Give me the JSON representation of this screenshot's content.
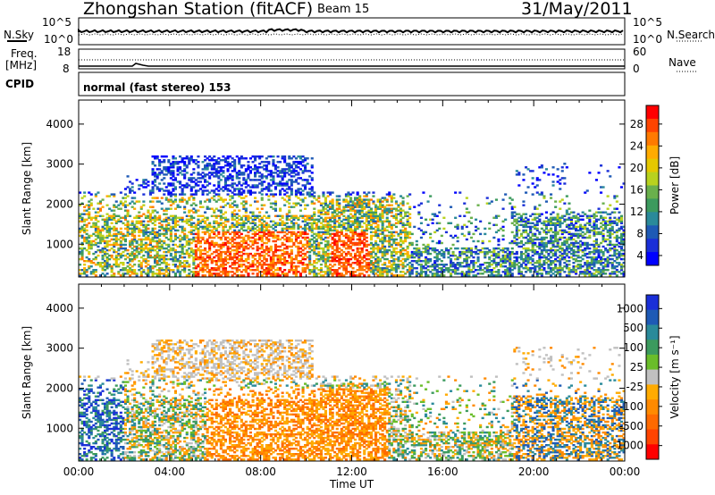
{
  "header": {
    "title": "Zhongshan Station (fitACF)",
    "beam": "Beam 15",
    "date": "31/May/2011"
  },
  "top_panels": {
    "nsky_label": "N.Sky",
    "nsky_ticks": [
      "10^5",
      "10^0"
    ],
    "nsearch_label": "N.Search",
    "nsearch_ticks": [
      "10^5",
      "10^0"
    ],
    "freq_label_1": "Freq.",
    "freq_label_2": "[MHz]",
    "freq_ticks": [
      "18",
      "8"
    ],
    "nave_label": "Nave",
    "nave_ticks": [
      "60",
      "0"
    ],
    "cpid_label": "CPID",
    "cpid_text": "normal (fast stereo) 153"
  },
  "chart_data": [
    {
      "type": "heatmap",
      "name": "power",
      "ylabel": "Slant Range [km]",
      "xlabel": "",
      "yticks": [
        1000,
        2000,
        3000,
        4000
      ],
      "ylim": [
        180,
        4600
      ],
      "xlim": [
        0,
        24
      ],
      "colorbar_label": "Power [dB]",
      "colorbar_ticks": [
        "28",
        "24",
        "20",
        "16",
        "12",
        "8",
        "4"
      ],
      "colorbar_colors": [
        "#ff0000",
        "#ff4400",
        "#ff7a00",
        "#ffab00",
        "#e5c800",
        "#b8d21e",
        "#6ab04c",
        "#3c9a5e",
        "#2a8a9a",
        "#1e5ab5",
        "#1a2fd8",
        "#0000ff"
      ]
    },
    {
      "type": "heatmap",
      "name": "velocity",
      "ylabel": "Slant Range [km]",
      "xlabel": "Time UT",
      "yticks": [
        1000,
        2000,
        3000,
        4000
      ],
      "ylim": [
        180,
        4600
      ],
      "xlim": [
        0,
        24
      ],
      "xticks": [
        "00:00",
        "04:00",
        "08:00",
        "12:00",
        "16:00",
        "20:00",
        "00:00"
      ],
      "colorbar_label": "Velocity [m s⁻¹]",
      "colorbar_ticks": [
        "1000",
        "500",
        "100",
        "25",
        "-25",
        "-100",
        "-500",
        "-1000"
      ],
      "colorbar_colors": [
        "#1a2fd8",
        "#1e5ab5",
        "#2a8a9a",
        "#3c9a5e",
        "#6abd2a",
        "#c0c0c0",
        "#ffab00",
        "#ff8a00",
        "#ff6a00",
        "#ff4400",
        "#ff0000"
      ]
    }
  ]
}
